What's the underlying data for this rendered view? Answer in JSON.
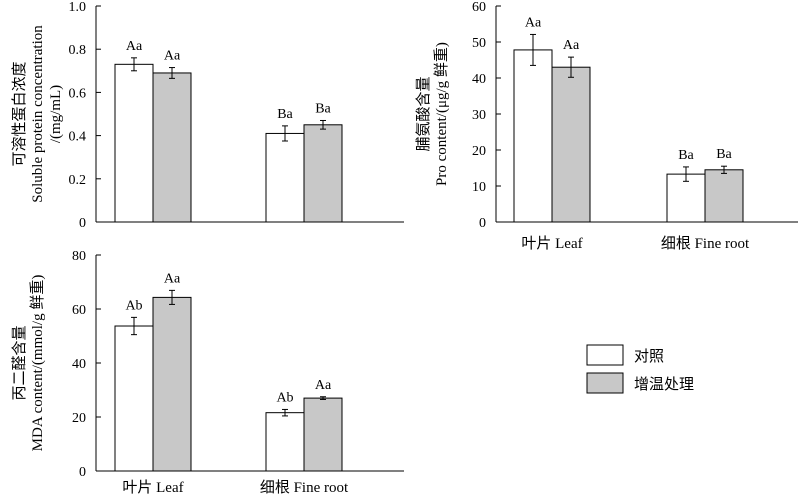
{
  "legend": {
    "items": [
      {
        "label": "对照",
        "color": "#ffffff"
      },
      {
        "label": "增温处理",
        "color": "#c8c8c8"
      }
    ]
  },
  "chart_data": [
    {
      "id": "soluble-protein",
      "type": "bar",
      "ylabel_cn": "可溶性蛋白浓度",
      "ylabel_en": "Soluble protein concentration",
      "ylabel_unit": "/(mg/mL)",
      "ylim": [
        0,
        1.0
      ],
      "yticks": [
        "0",
        "0.2",
        "0.4",
        "0.6",
        "0.8",
        "1.0"
      ],
      "categories": [
        "",
        ""
      ],
      "series": [
        {
          "values": [
            0.73,
            0.41
          ],
          "errors": [
            0.03,
            0.035
          ],
          "labels": [
            "Aa",
            "Ba"
          ]
        },
        {
          "values": [
            0.69,
            0.45
          ],
          "errors": [
            0.025,
            0.02
          ],
          "labels": [
            "Aa",
            "Ba"
          ]
        }
      ]
    },
    {
      "id": "proline",
      "type": "bar",
      "ylabel_cn": "脯氨酸含量",
      "ylabel_en": "Pro content/(μg/g 鲜重)",
      "ylim": [
        0,
        60
      ],
      "yticks": [
        "0",
        "10",
        "20",
        "30",
        "40",
        "50",
        "60"
      ],
      "categories": [
        "叶片 Leaf",
        "细根 Fine root"
      ],
      "series": [
        {
          "values": [
            47.8,
            13.3
          ],
          "errors": [
            4.3,
            2.0
          ],
          "labels": [
            "Aa",
            "Ba"
          ]
        },
        {
          "values": [
            43.0,
            14.5
          ],
          "errors": [
            2.8,
            1.0
          ],
          "labels": [
            "Aa",
            "Ba"
          ]
        }
      ]
    },
    {
      "id": "mda",
      "type": "bar",
      "ylabel_cn": "丙二醛含量",
      "ylabel_en": "MDA content/(mmol/g 鲜重)",
      "ylim": [
        0,
        80
      ],
      "yticks": [
        "0",
        "20",
        "40",
        "60",
        "80"
      ],
      "categories": [
        "叶片 Leaf",
        "细根 Fine root"
      ],
      "series": [
        {
          "values": [
            53.7,
            21.6
          ],
          "errors": [
            3.2,
            1.2
          ],
          "labels": [
            "Ab",
            "Ab"
          ]
        },
        {
          "values": [
            64.3,
            27.0
          ],
          "errors": [
            2.6,
            0.5
          ],
          "labels": [
            "Aa",
            "Aa"
          ]
        }
      ]
    }
  ]
}
